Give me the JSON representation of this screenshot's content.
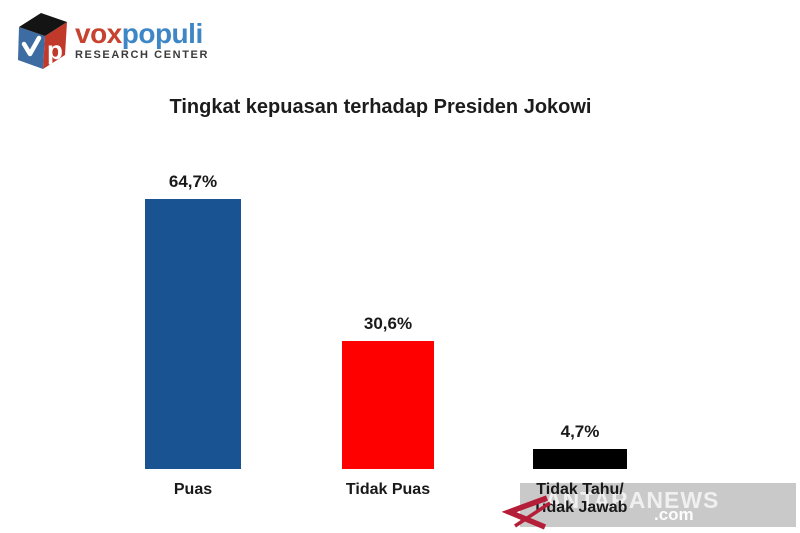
{
  "logo": {
    "brand_first": "vox",
    "brand_second": "populi",
    "subtitle": "RESEARCH CENTER",
    "brand_first_color": "#C8432F",
    "brand_second_color": "#3E87C6",
    "cube_colors": {
      "top": "#141414",
      "left": "#3D6CA3",
      "right": "#C0392B"
    }
  },
  "chart_data": {
    "type": "bar",
    "title": "Tingkat kepuasan terhadap Presiden Jokowi",
    "categories": [
      "Puas",
      "Tidak Puas",
      "Tidak Tahu/\nTidak Jawab"
    ],
    "values": [
      64.7,
      30.6,
      4.7
    ],
    "value_labels": [
      "64,7%",
      "30,6%",
      "4,7%"
    ],
    "bar_colors": [
      "#1A5391",
      "#FE0000",
      "#000000"
    ],
    "xlabel": "",
    "ylabel": "",
    "ylim": [
      0,
      70
    ],
    "grid": false,
    "legend": false
  },
  "watermark": {
    "text": "ANTARANEWS",
    "suffix": ".com",
    "band_color": "#C9C9C9",
    "logo_color": "#B51E38"
  }
}
